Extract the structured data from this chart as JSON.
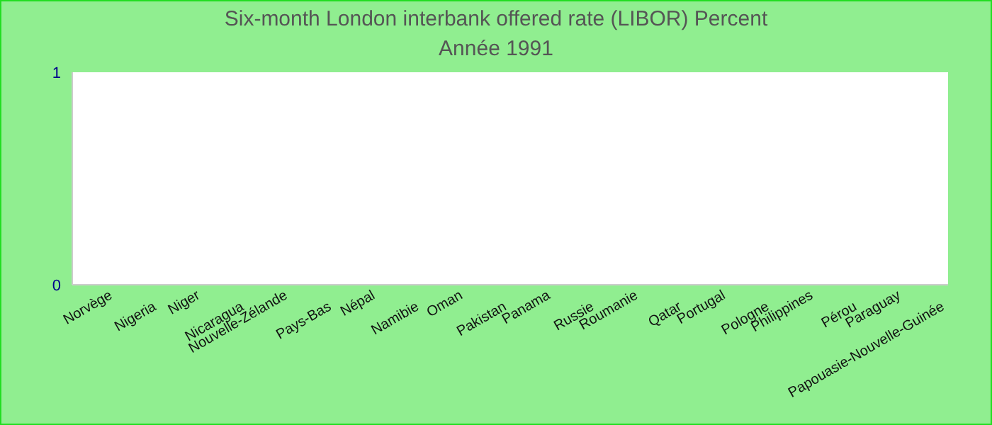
{
  "chart_data": {
    "type": "bar",
    "title": "Six-month London interbank offered rate (LIBOR)  Percent",
    "subtitle": "Année 1991",
    "categories": [
      "Norvège",
      "Nigeria",
      "Niger",
      "Nicaragua",
      "Nouvelle-Zélande",
      "Pays-Bas",
      "Népal",
      "Namibie",
      "Oman",
      "Pakistan",
      "Panama",
      "Russie",
      "Roumanie",
      "Qatar",
      "Portugal",
      "Pologne",
      "Philippines",
      "Pérou",
      "Paraguay",
      "Papouasie-Nouvelle-Guinée"
    ],
    "values": [
      0,
      0,
      0,
      0,
      0,
      0,
      0,
      0,
      0,
      0,
      0,
      0,
      0,
      0,
      0,
      0,
      0,
      0,
      0,
      0
    ],
    "ylim": [
      0,
      1
    ],
    "yticks": [
      0,
      1
    ],
    "grid": false
  }
}
